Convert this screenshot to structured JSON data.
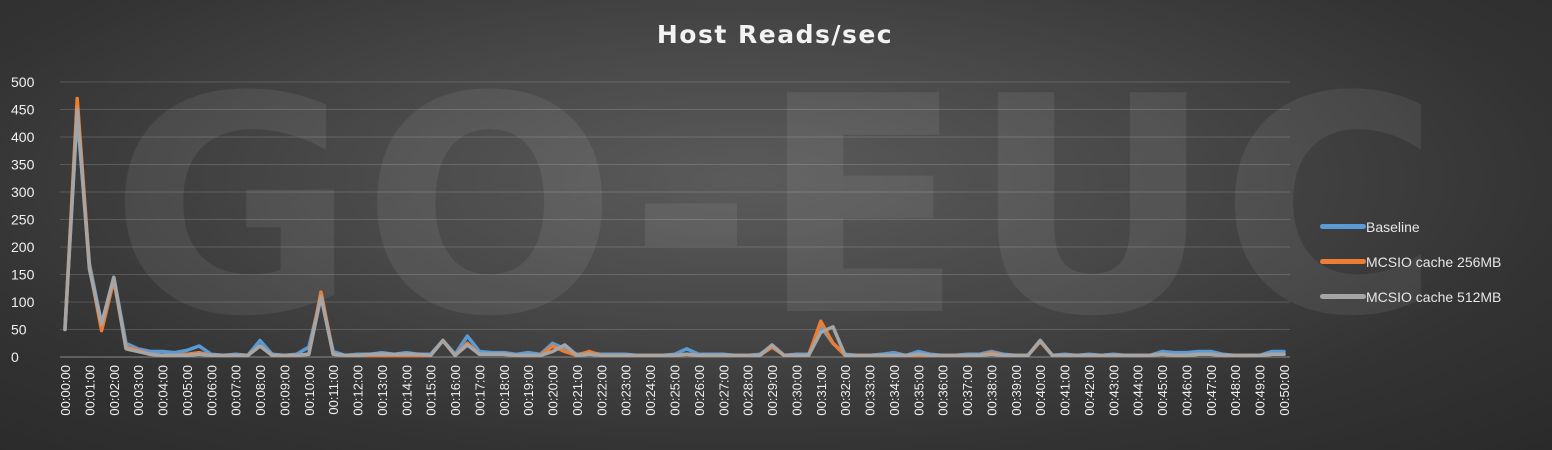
{
  "watermark": "GO-EUC",
  "chart_data": {
    "type": "line",
    "title": "Host Reads/sec",
    "xlabel": "",
    "ylabel": "",
    "ylim": [
      0,
      500
    ],
    "yticks": [
      0,
      50,
      100,
      150,
      200,
      250,
      300,
      350,
      400,
      450,
      500
    ],
    "grid": true,
    "legend": "right",
    "x": [
      "00:00:00",
      "00:00:30",
      "00:01:00",
      "00:01:30",
      "00:02:00",
      "00:02:30",
      "00:03:00",
      "00:03:30",
      "00:04:00",
      "00:04:30",
      "00:05:00",
      "00:05:30",
      "00:06:00",
      "00:06:30",
      "00:07:00",
      "00:07:30",
      "00:08:00",
      "00:08:30",
      "00:09:00",
      "00:09:30",
      "00:10:00",
      "00:10:30",
      "00:11:00",
      "00:11:30",
      "00:12:00",
      "00:12:30",
      "00:13:00",
      "00:13:30",
      "00:14:00",
      "00:14:30",
      "00:15:00",
      "00:15:30",
      "00:16:00",
      "00:16:30",
      "00:17:00",
      "00:17:30",
      "00:18:00",
      "00:18:30",
      "00:19:00",
      "00:19:30",
      "00:20:00",
      "00:20:30",
      "00:21:00",
      "00:21:30",
      "00:22:00",
      "00:22:30",
      "00:23:00",
      "00:23:30",
      "00:24:00",
      "00:24:30",
      "00:25:00",
      "00:25:30",
      "00:26:00",
      "00:26:30",
      "00:27:00",
      "00:27:30",
      "00:28:00",
      "00:28:30",
      "00:29:00",
      "00:29:30",
      "00:30:00",
      "00:30:30",
      "00:31:00",
      "00:31:30",
      "00:32:00",
      "00:32:30",
      "00:33:00",
      "00:33:30",
      "00:34:00",
      "00:34:30",
      "00:35:00",
      "00:35:30",
      "00:36:00",
      "00:36:30",
      "00:37:00",
      "00:37:30",
      "00:38:00",
      "00:38:30",
      "00:39:00",
      "00:39:30",
      "00:40:00",
      "00:40:30",
      "00:41:00",
      "00:41:30",
      "00:42:00",
      "00:42:30",
      "00:43:00",
      "00:43:30",
      "00:44:00",
      "00:44:30",
      "00:45:00",
      "00:45:30",
      "00:46:00",
      "00:46:30",
      "00:47:00",
      "00:47:30",
      "00:48:00",
      "00:48:30",
      "00:49:00",
      "00:49:30",
      "00:50:00"
    ],
    "xtick_labels": [
      "00:00:00",
      "00:01:00",
      "00:02:00",
      "00:03:00",
      "00:04:00",
      "00:05:00",
      "00:06:00",
      "00:07:00",
      "00:08:00",
      "00:09:00",
      "00:10:00",
      "00:11:00",
      "00:12:00",
      "00:13:00",
      "00:14:00",
      "00:15:00",
      "00:16:00",
      "00:17:00",
      "00:18:00",
      "00:19:00",
      "00:20:00",
      "00:21:00",
      "00:22:00",
      "00:23:00",
      "00:24:00",
      "00:25:00",
      "00:26:00",
      "00:27:00",
      "00:28:00",
      "00:29:00",
      "00:30:00",
      "00:31:00",
      "00:32:00",
      "00:33:00",
      "00:34:00",
      "00:35:00",
      "00:36:00",
      "00:37:00",
      "00:38:00",
      "00:39:00",
      "00:40:00",
      "00:41:00",
      "00:42:00",
      "00:43:00",
      "00:44:00",
      "00:45:00",
      "00:46:00",
      "00:47:00",
      "00:48:00",
      "00:49:00",
      "00:50:00"
    ],
    "series": [
      {
        "name": "Baseline",
        "color": "#5b9bd5",
        "values": [
          55,
          440,
          170,
          60,
          145,
          25,
          15,
          10,
          10,
          8,
          12,
          20,
          5,
          3,
          5,
          3,
          30,
          5,
          3,
          5,
          18,
          110,
          10,
          3,
          5,
          5,
          8,
          5,
          8,
          5,
          5,
          30,
          5,
          38,
          10,
          8,
          8,
          5,
          8,
          5,
          25,
          15,
          5,
          8,
          5,
          5,
          5,
          3,
          3,
          3,
          5,
          15,
          5,
          5,
          5,
          3,
          3,
          5,
          20,
          3,
          5,
          5,
          55,
          25,
          5,
          3,
          3,
          5,
          8,
          3,
          10,
          5,
          3,
          3,
          5,
          5,
          10,
          5,
          3,
          3,
          30,
          3,
          5,
          3,
          5,
          3,
          5,
          3,
          3,
          3,
          10,
          8,
          8,
          10,
          10,
          5,
          3,
          3,
          3,
          10,
          10
        ]
      },
      {
        "name": "MCSIO cache 256MB",
        "color": "#ed7d31",
        "values": [
          50,
          470,
          165,
          48,
          140,
          18,
          12,
          5,
          3,
          3,
          5,
          8,
          3,
          3,
          3,
          3,
          20,
          3,
          3,
          3,
          5,
          118,
          5,
          3,
          3,
          3,
          3,
          3,
          3,
          3,
          3,
          30,
          3,
          25,
          5,
          5,
          5,
          3,
          3,
          3,
          20,
          10,
          3,
          10,
          3,
          3,
          3,
          3,
          3,
          3,
          3,
          5,
          3,
          3,
          3,
          3,
          3,
          3,
          18,
          3,
          3,
          3,
          65,
          25,
          3,
          3,
          3,
          3,
          3,
          3,
          3,
          3,
          3,
          3,
          3,
          3,
          8,
          3,
          3,
          3,
          28,
          3,
          3,
          3,
          3,
          3,
          3,
          3,
          3,
          3,
          5,
          3,
          3,
          5,
          5,
          3,
          3,
          3,
          3,
          5,
          5
        ]
      },
      {
        "name": "MCSIO cache 512MB",
        "color": "#a5a5a5",
        "values": [
          50,
          450,
          160,
          60,
          145,
          15,
          10,
          5,
          3,
          3,
          3,
          5,
          3,
          3,
          3,
          3,
          20,
          3,
          3,
          3,
          5,
          110,
          5,
          3,
          3,
          5,
          5,
          5,
          5,
          5,
          3,
          30,
          3,
          22,
          5,
          5,
          5,
          3,
          3,
          3,
          10,
          22,
          3,
          5,
          3,
          3,
          3,
          3,
          3,
          3,
          3,
          5,
          3,
          3,
          3,
          3,
          3,
          3,
          22,
          3,
          3,
          3,
          45,
          55,
          3,
          3,
          3,
          3,
          3,
          3,
          5,
          3,
          3,
          3,
          3,
          3,
          5,
          3,
          3,
          3,
          30,
          3,
          3,
          3,
          3,
          3,
          3,
          3,
          3,
          3,
          5,
          3,
          3,
          5,
          5,
          3,
          3,
          3,
          3,
          5,
          5
        ]
      }
    ]
  }
}
